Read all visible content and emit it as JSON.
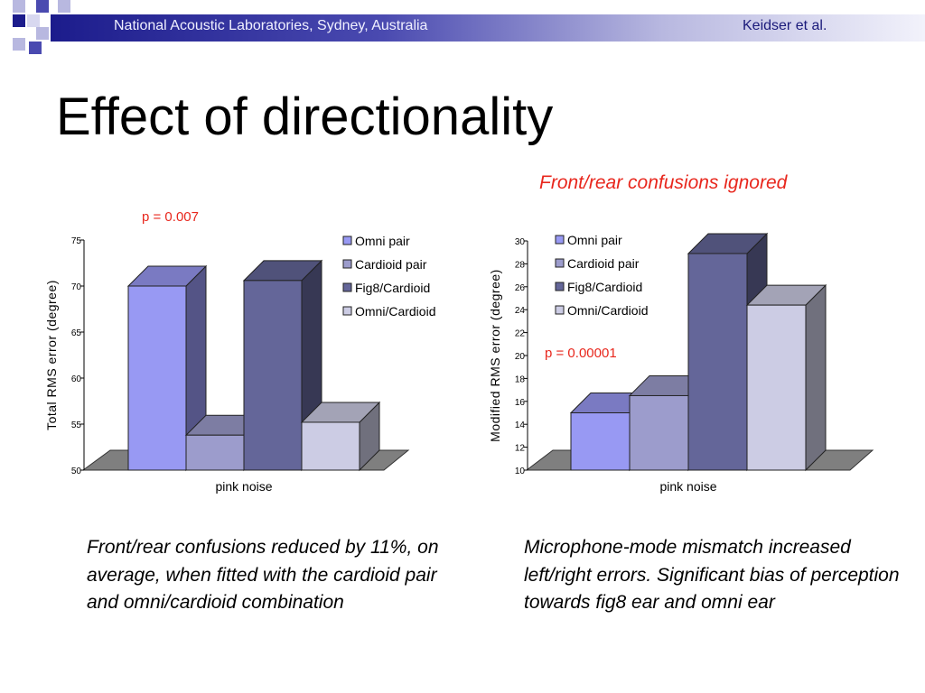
{
  "header": {
    "organization": "National Acoustic Laboratories, Sydney, Australia",
    "authors": "Keidser et al."
  },
  "title": "Effect of directionality",
  "subtitle": "Front/rear confusions ignored",
  "colors": {
    "header_dark": "#1c1c8c",
    "header_light": "#f2f2fb",
    "annotation_red": "#e8271d",
    "omni_pair": "#9899f3",
    "cardioid_pair": "#9c9ccc",
    "fig8_cardioid": "#646699",
    "omni_cardioid": "#cccce4",
    "floor": "#7f7f7f"
  },
  "chart_data": [
    {
      "type": "bar",
      "categories": [
        "pink noise"
      ],
      "series": [
        {
          "name": "Omni pair",
          "values": [
            70.0
          ]
        },
        {
          "name": "Cardioid pair",
          "values": [
            53.8
          ]
        },
        {
          "name": "Fig8/Cardioid",
          "values": [
            70.6
          ]
        },
        {
          "name": "Omni/Cardioid",
          "values": [
            55.2
          ]
        }
      ],
      "ylabel": "Total RMS error (degree)",
      "xlabel": "",
      "ylim": [
        50,
        75
      ],
      "yticks": [
        50,
        55,
        60,
        65,
        70,
        75
      ],
      "annotation": "p = 0.007",
      "legend": "top-right",
      "grid": false,
      "style": "3d"
    },
    {
      "type": "bar",
      "categories": [
        "pink noise"
      ],
      "series": [
        {
          "name": "Omni pair",
          "values": [
            15.0
          ]
        },
        {
          "name": "Cardioid pair",
          "values": [
            16.5
          ]
        },
        {
          "name": "Fig8/Cardioid",
          "values": [
            28.9
          ]
        },
        {
          "name": "Omni/Cardioid",
          "values": [
            24.4
          ]
        }
      ],
      "ylabel": "Modified RMS error (degree)",
      "xlabel": "",
      "ylim": [
        10,
        30
      ],
      "yticks": [
        10,
        12,
        14,
        16,
        18,
        20,
        22,
        24,
        26,
        28,
        30
      ],
      "annotation": "p = 0.00001",
      "legend": "top-left",
      "grid": false,
      "style": "3d"
    }
  ],
  "captions": {
    "left": "Front/rear confusions reduced by 11%, on average, when fitted with the cardioid pair and omni/cardioid combination",
    "right": "Microphone-mode mismatch increased left/right errors. Significant bias of perception towards fig8 ear and omni ear"
  }
}
